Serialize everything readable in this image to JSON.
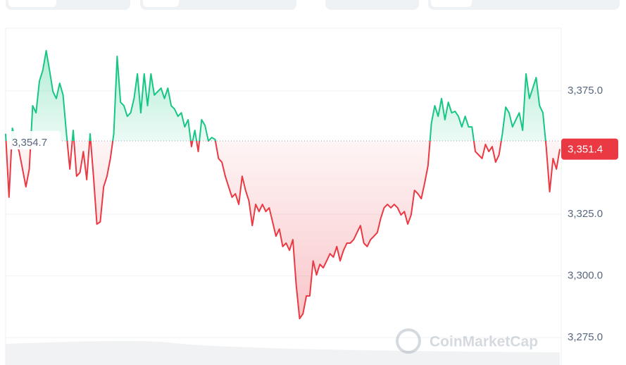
{
  "chart_data": {
    "type": "line",
    "baseline": {
      "value": 3354.7,
      "label": "3,354.7"
    },
    "last_price": {
      "value": 3351.4,
      "label": "3,351.4"
    },
    "watermark": "CoinMarketCap",
    "up_color": "#16c784",
    "down_color": "#ea3943",
    "ylim": [
      3263.9,
      3400.4
    ],
    "yticks": [
      {
        "value": 3275,
        "label": "3,275.0"
      },
      {
        "value": 3300,
        "label": "3,300.0"
      },
      {
        "value": 3325,
        "label": "3,325.0"
      },
      {
        "value": 3375,
        "label": "3,375.0"
      }
    ],
    "grid": true,
    "values": [
      3357.6,
      3331.9,
      3359.9,
      3354.7,
      3350.4,
      3343.3,
      3336.1,
      3343.3,
      3369.0,
      3366.1,
      3379.0,
      3383.3,
      3391.3,
      3383.3,
      3374.7,
      3371.9,
      3378.1,
      3373.3,
      3357.6,
      3343.3,
      3359.0,
      3340.4,
      3341.9,
      3350.4,
      3339.0,
      3357.6,
      3340.4,
      3321.0,
      3321.9,
      3336.1,
      3340.4,
      3347.6,
      3357.6,
      3389.0,
      3370.4,
      3369.0,
      3364.7,
      3366.1,
      3371.9,
      3381.9,
      3366.1,
      3381.9,
      3369.0,
      3381.9,
      3373.3,
      3374.7,
      3376.1,
      3371.9,
      3376.1,
      3369.0,
      3367.6,
      3364.7,
      3366.1,
      3360.4,
      3363.3,
      3352.4,
      3359.0,
      3350.4,
      3363.3,
      3361.0,
      3354.7,
      3356.1,
      3355.3,
      3347.6,
      3346.1,
      3340.4,
      3336.1,
      3331.9,
      3333.3,
      3329.0,
      3340.4,
      3334.7,
      3330.4,
      3320.4,
      3329.0,
      3326.1,
      3329.0,
      3326.1,
      3327.6,
      3321.9,
      3316.1,
      3319.0,
      3311.9,
      3313.3,
      3310.4,
      3314.7,
      3296.1,
      3282.7,
      3284.7,
      3291.9,
      3291.9,
      3306.1,
      3300.4,
      3304.7,
      3303.3,
      3306.1,
      3309.0,
      3307.6,
      3311.9,
      3306.1,
      3310.4,
      3313.3,
      3313.3,
      3314.7,
      3317.6,
      3320.4,
      3313.3,
      3311.9,
      3314.7,
      3316.1,
      3317.6,
      3323.3,
      3327.6,
      3329.0,
      3327.6,
      3329.0,
      3327.6,
      3324.7,
      3326.1,
      3321.0,
      3324.7,
      3334.7,
      3333.3,
      3331.3,
      3337.6,
      3344.7,
      3361.9,
      3369.0,
      3364.7,
      3371.9,
      3363.3,
      3370.4,
      3366.1,
      3366.7,
      3364.7,
      3360.4,
      3364.7,
      3360.4,
      3360.4,
      3350.4,
      3349.0,
      3347.6,
      3353.3,
      3350.4,
      3352.4,
      3346.1,
      3349.0,
      3357.6,
      3368.4,
      3366.1,
      3360.4,
      3363.3,
      3366.1,
      3359.0,
      3381.9,
      3371.9,
      3376.1,
      3380.4,
      3369.0,
      3366.1,
      3351.9,
      3334.1,
      3347.6,
      3343.3,
      3351.4
    ]
  }
}
